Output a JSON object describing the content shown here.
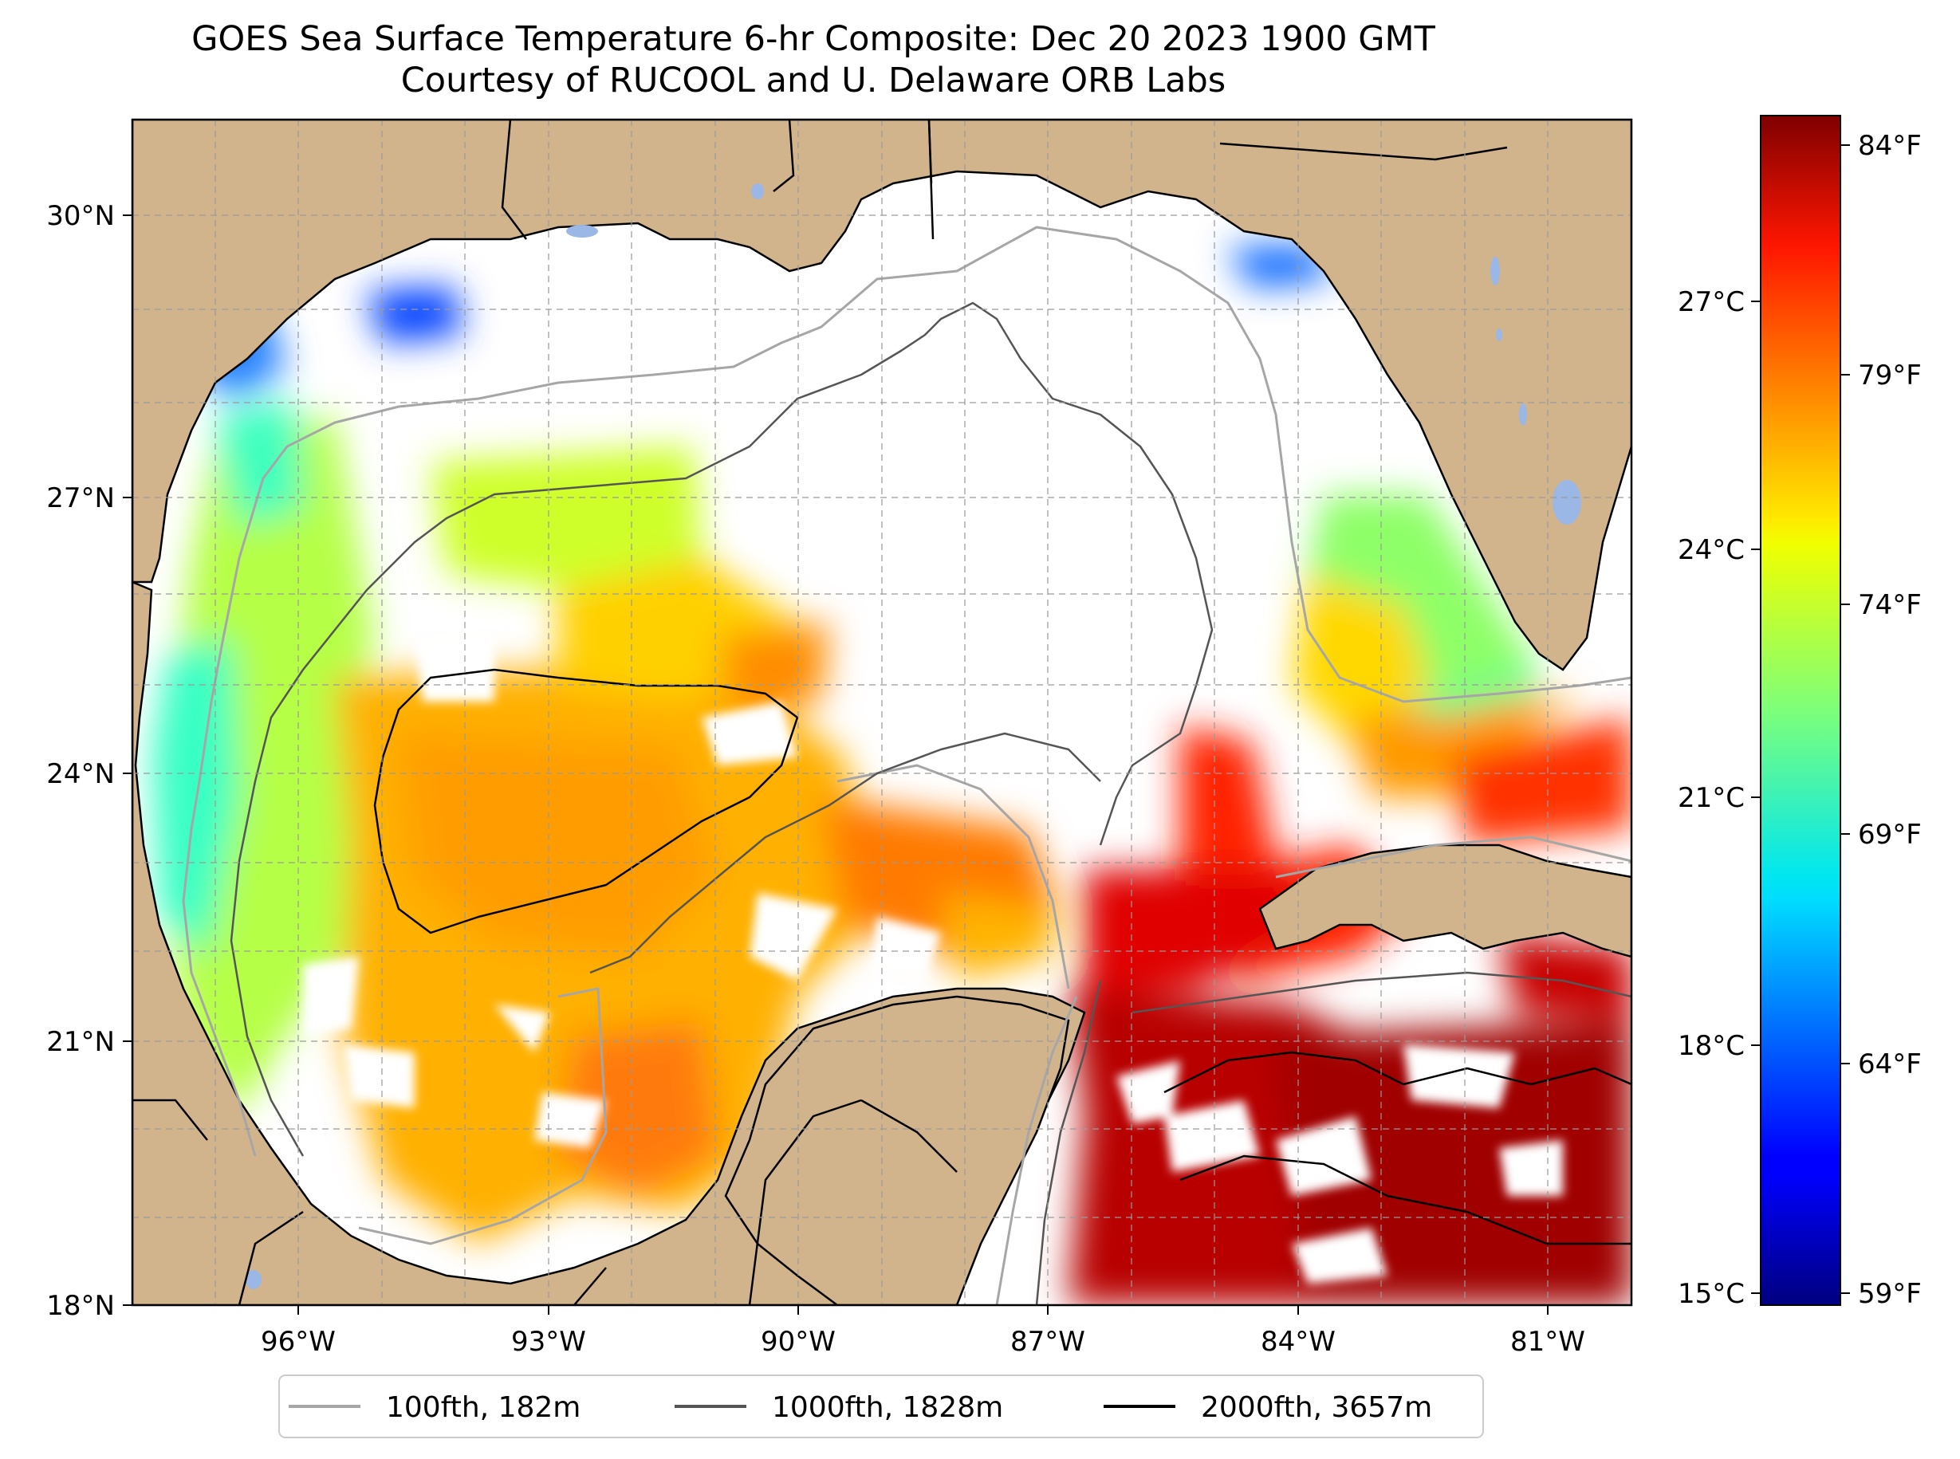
{
  "title": {
    "line1": "GOES Sea Surface Temperature 6-hr Composite: Dec 20 2023 1900 GMT",
    "line2": "Courtesy of RUCOOL and U. Delaware ORB Labs"
  },
  "map": {
    "lon_range": [
      -98,
      -80
    ],
    "lat_range": [
      18,
      31
    ],
    "gridlines": true,
    "land_color": "#d2b48c",
    "no_data_color": "#ffffff",
    "x_ticks": [
      "96°W",
      "93°W",
      "90°W",
      "87°W",
      "84°W",
      "81°W"
    ],
    "y_ticks": [
      "18°N",
      "21°N",
      "24°N",
      "27°N",
      "30°N"
    ]
  },
  "colorbar": {
    "colormap": "jet",
    "celsius_labels": [
      "15°C",
      "18°C",
      "21°C",
      "24°C",
      "27°C"
    ],
    "fahrenheit_labels": [
      "59°F",
      "64°F",
      "69°F",
      "74°F",
      "79°F",
      "84°F"
    ],
    "range_c": [
      15,
      29
    ]
  },
  "legend": {
    "placement": "bottom-center",
    "items": [
      {
        "label": "100fth, 182m",
        "color": "#a6a6a6"
      },
      {
        "label": "1000fth, 1828m",
        "color": "#555555"
      },
      {
        "label": "2000fth, 3657m",
        "color": "#000000"
      }
    ]
  },
  "chart_data": {
    "type": "heatmap",
    "title": "GOES Sea Surface Temperature 6-hr Composite: Dec 20 2023 1900 GMT",
    "subtitle": "Courtesy of RUCOOL and U. Delaware ORB Labs",
    "xlabel": "",
    "ylabel": "",
    "xlim": [
      -98,
      -80
    ],
    "ylim": [
      18,
      31
    ],
    "colorbar_range_c": [
      15,
      29
    ],
    "grid": true,
    "legend_placement": "bottom-center"
  }
}
